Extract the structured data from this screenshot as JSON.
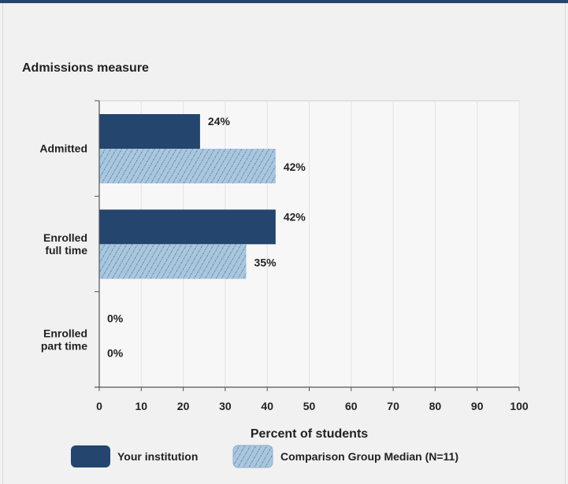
{
  "colors": {
    "series1": "#23456e",
    "series2_fill": "#a9c6e3",
    "series2_hatch": "#4e7e6a",
    "plot_bg": "#f7f7f7",
    "grid": "#e3e3e3"
  },
  "chart_data": {
    "type": "bar",
    "orientation": "horizontal",
    "title": "Admissions measure",
    "xlabel": "Percent of students",
    "ylabel": "",
    "xlim": [
      0,
      100
    ],
    "xticks": [
      0,
      10,
      20,
      30,
      40,
      50,
      60,
      70,
      80,
      90,
      100
    ],
    "grid": true,
    "legend_position": "bottom",
    "categories": [
      [
        "Admitted"
      ],
      [
        "Enrolled",
        "full time"
      ],
      [
        "Enrolled",
        "part time"
      ]
    ],
    "series": [
      {
        "name": "Your institution",
        "values": [
          24,
          42,
          0
        ],
        "labels": [
          "24%",
          "42%",
          "0%"
        ]
      },
      {
        "name": "Comparison Group Median (N=11)",
        "values": [
          42,
          35,
          0
        ],
        "labels": [
          "42%",
          "35%",
          "0%"
        ]
      }
    ]
  }
}
